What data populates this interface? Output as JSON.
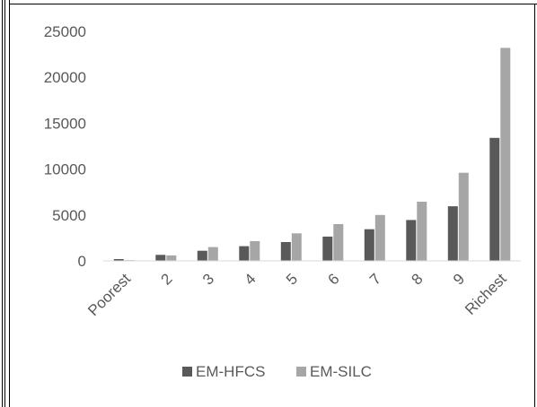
{
  "chart_data": {
    "type": "bar",
    "title": "",
    "xlabel": "",
    "ylabel": "",
    "categories": [
      "Poorest",
      "2",
      "3",
      "4",
      "5",
      "6",
      "7",
      "8",
      "9",
      "Richest"
    ],
    "ylim": [
      0,
      25000
    ],
    "yticks": [
      "25000",
      "20000",
      "15000",
      "10000",
      "5000",
      "0"
    ],
    "ytick_values": [
      25000,
      20000,
      15000,
      10000,
      5000,
      0
    ],
    "grid": false,
    "legend_position": "bottom",
    "series": [
      {
        "name": "EM-HFCS",
        "color": "#595959",
        "values": [
          200,
          650,
          1100,
          1600,
          2050,
          2650,
          3450,
          4450,
          5950,
          13400
        ]
      },
      {
        "name": "EM-SILC",
        "color": "#a6a6a6",
        "values": [
          80,
          600,
          1500,
          2150,
          3000,
          4000,
          5000,
          6450,
          9600,
          23200
        ]
      }
    ]
  }
}
